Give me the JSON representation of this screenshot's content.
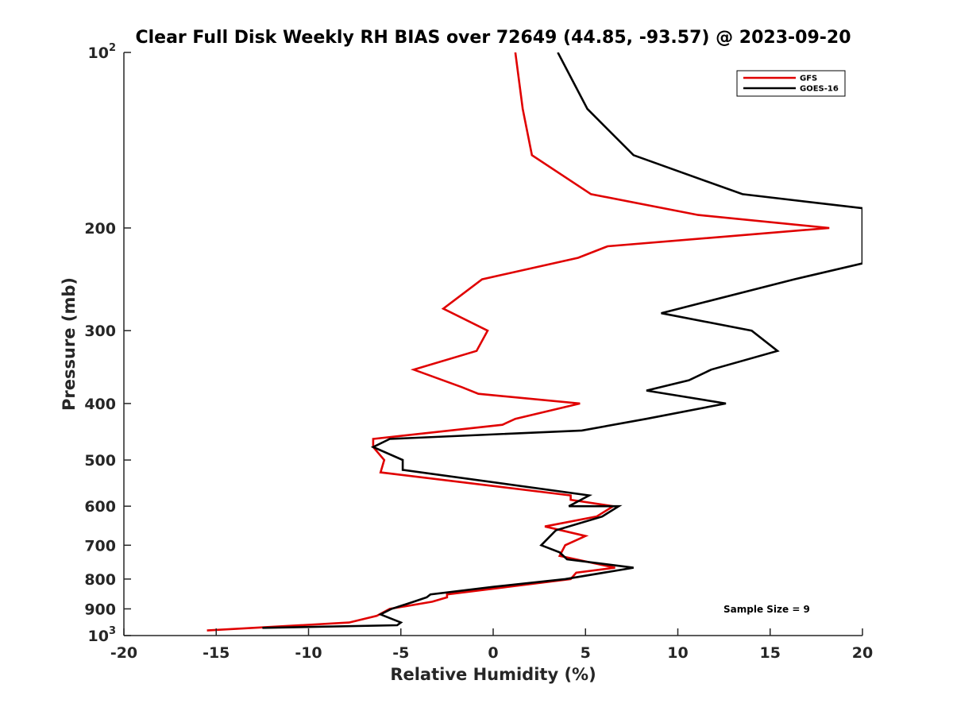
{
  "chart_data": {
    "type": "line",
    "title": "Clear Full Disk Weekly RH BIAS over 72649 (44.85, -93.57) @ 2023-09-20",
    "xlabel": "Relative Humidity (%)",
    "ylabel": "Pressure (mb)",
    "xlim": [
      -20,
      20
    ],
    "ylim": [
      1000,
      100
    ],
    "y_scale": "log",
    "y_reversed": true,
    "grid": false,
    "legend_position": "top-right",
    "x_ticks": [
      -20,
      -15,
      -10,
      -5,
      0,
      5,
      10,
      15,
      20
    ],
    "y_ticks": [
      {
        "value": 100,
        "label": "10",
        "sup": "2"
      },
      {
        "value": 200,
        "label": "200",
        "sup": ""
      },
      {
        "value": 300,
        "label": "300",
        "sup": ""
      },
      {
        "value": 400,
        "label": "400",
        "sup": ""
      },
      {
        "value": 500,
        "label": "500",
        "sup": ""
      },
      {
        "value": 600,
        "label": "600",
        "sup": ""
      },
      {
        "value": 700,
        "label": "700",
        "sup": ""
      },
      {
        "value": 800,
        "label": "800",
        "sup": ""
      },
      {
        "value": 900,
        "label": "900",
        "sup": ""
      },
      {
        "value": 1000,
        "label": "10",
        "sup": "3"
      }
    ],
    "series": [
      {
        "name": "GFS",
        "color": "#e00000",
        "points": [
          [
            1.2,
            100
          ],
          [
            1.6,
            125
          ],
          [
            2.1,
            150
          ],
          [
            5.3,
            175
          ],
          [
            11.1,
            190
          ],
          [
            18.2,
            200
          ],
          [
            6.2,
            215
          ],
          [
            4.6,
            225
          ],
          [
            -0.6,
            245
          ],
          [
            -2.7,
            275
          ],
          [
            -0.3,
            300
          ],
          [
            -0.9,
            325
          ],
          [
            -4.3,
            350
          ],
          [
            -1.7,
            375
          ],
          [
            -0.8,
            385
          ],
          [
            4.7,
            400
          ],
          [
            1.2,
            425
          ],
          [
            0.5,
            435
          ],
          [
            -6.5,
            460
          ],
          [
            -6.5,
            475
          ],
          [
            -5.9,
            500
          ],
          [
            -6.1,
            525
          ],
          [
            4.2,
            575
          ],
          [
            4.2,
            585
          ],
          [
            6.5,
            600
          ],
          [
            5.6,
            625
          ],
          [
            2.8,
            650
          ],
          [
            5.0,
            675
          ],
          [
            3.9,
            700
          ],
          [
            3.6,
            730
          ],
          [
            6.6,
            765
          ],
          [
            4.5,
            780
          ],
          [
            4.2,
            800
          ],
          [
            0.8,
            825
          ],
          [
            -2.5,
            850
          ],
          [
            -2.5,
            860
          ],
          [
            -3.3,
            875
          ],
          [
            -5.6,
            900
          ],
          [
            -6.3,
            925
          ],
          [
            -7.8,
            950
          ],
          [
            -15.5,
            980
          ]
        ]
      },
      {
        "name": "GOES-16",
        "color": "#000000",
        "points": [
          [
            3.5,
            100
          ],
          [
            5.1,
            125
          ],
          [
            7.6,
            150
          ],
          [
            13.5,
            175
          ],
          [
            20.0,
            185
          ],
          [
            20.0,
            230
          ],
          [
            16.3,
            245
          ],
          [
            9.1,
            280
          ],
          [
            14.0,
            300
          ],
          [
            15.4,
            325
          ],
          [
            11.8,
            350
          ],
          [
            10.6,
            365
          ],
          [
            8.3,
            380
          ],
          [
            12.6,
            400
          ],
          [
            8.3,
            425
          ],
          [
            4.8,
            445
          ],
          [
            -5.6,
            460
          ],
          [
            -6.5,
            475
          ],
          [
            -4.9,
            500
          ],
          [
            -4.9,
            520
          ],
          [
            5.2,
            575
          ],
          [
            4.1,
            600
          ],
          [
            6.8,
            600
          ],
          [
            5.9,
            625
          ],
          [
            3.4,
            660
          ],
          [
            2.6,
            700
          ],
          [
            3.6,
            720
          ],
          [
            4.0,
            740
          ],
          [
            7.6,
            765
          ],
          [
            3.9,
            800
          ],
          [
            0.0,
            825
          ],
          [
            -3.4,
            850
          ],
          [
            -3.6,
            860
          ],
          [
            -4.3,
            875
          ],
          [
            -5.5,
            900
          ],
          [
            -6.1,
            920
          ],
          [
            -5.0,
            950
          ],
          [
            -5.2,
            960
          ],
          [
            -12.5,
            970
          ]
        ]
      }
    ],
    "annotation": "Sample Size = 9"
  }
}
